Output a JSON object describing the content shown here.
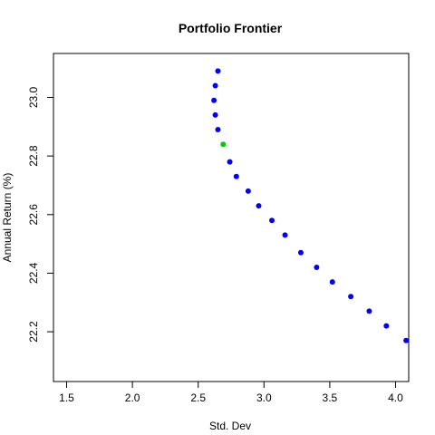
{
  "chart_data": {
    "type": "scatter",
    "title": "Portfolio Frontier",
    "xlabel": "Std. Dev",
    "ylabel": "Annual Return (%)",
    "xlim": [
      1.4,
      4.1
    ],
    "ylim": [
      22.03,
      23.15
    ],
    "xticks": [
      1.5,
      2.0,
      2.5,
      3.0,
      3.5,
      4.0
    ],
    "xtick_labels": [
      "1.5",
      "2.0",
      "2.5",
      "3.0",
      "3.5",
      "4.0"
    ],
    "yticks": [
      22.2,
      22.4,
      22.6,
      22.8,
      23.0
    ],
    "ytick_labels": [
      "22.2",
      "22.4",
      "22.6",
      "22.8",
      "23.0"
    ],
    "grid": false,
    "series": [
      {
        "color": "#0000ff",
        "points": [
          {
            "x": 2.65,
            "y": 23.09
          },
          {
            "x": 2.63,
            "y": 23.04
          },
          {
            "x": 2.62,
            "y": 22.99
          },
          {
            "x": 2.63,
            "y": 22.94
          },
          {
            "x": 2.65,
            "y": 22.89
          },
          {
            "x": 2.74,
            "y": 22.78
          },
          {
            "x": 2.79,
            "y": 22.73
          },
          {
            "x": 2.88,
            "y": 22.68
          },
          {
            "x": 2.96,
            "y": 22.63
          },
          {
            "x": 3.06,
            "y": 22.58
          },
          {
            "x": 3.16,
            "y": 22.53
          },
          {
            "x": 3.28,
            "y": 22.47
          },
          {
            "x": 3.4,
            "y": 22.42
          },
          {
            "x": 3.52,
            "y": 22.37
          },
          {
            "x": 3.66,
            "y": 22.32
          },
          {
            "x": 3.8,
            "y": 22.27
          },
          {
            "x": 3.93,
            "y": 22.22
          },
          {
            "x": 4.08,
            "y": 22.17
          }
        ]
      },
      {
        "color": "#00cc00",
        "points": [
          {
            "x": 2.69,
            "y": 22.84
          }
        ]
      }
    ]
  }
}
